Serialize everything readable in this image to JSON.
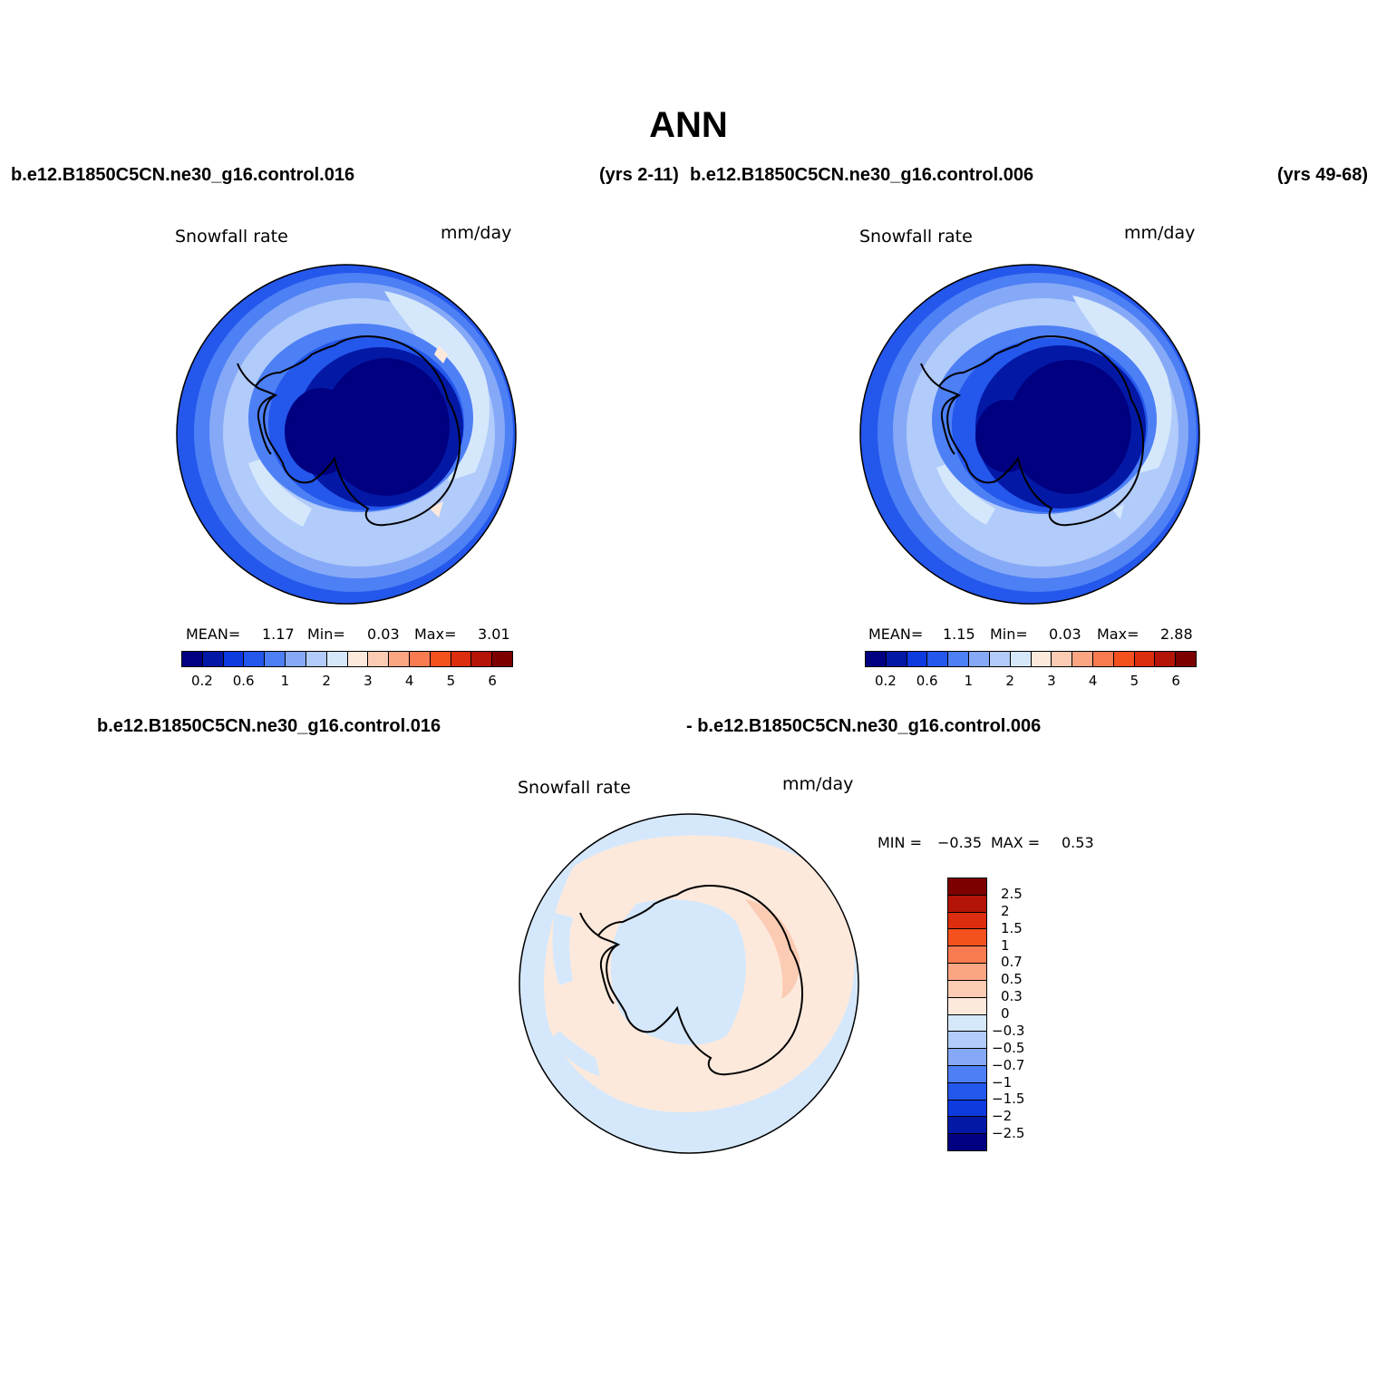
{
  "title": "ANN",
  "top_left": {
    "case": "b.e12.B1850C5CN.ne30_g16.control.016",
    "years": "(yrs 2-11)",
    "variable": "Snowfall rate",
    "units": "mm/day",
    "stats": {
      "mean_label": "MEAN=",
      "mean": "1.17",
      "min_label": "Min=",
      "min": "0.03",
      "max_label": "Max=",
      "max": "3.01"
    }
  },
  "top_right": {
    "case": "b.e12.B1850C5CN.ne30_g16.control.006",
    "years": "(yrs 49-68)",
    "variable": "Snowfall rate",
    "units": "mm/day",
    "stats": {
      "mean_label": "MEAN=",
      "mean": "1.15",
      "min_label": "Min=",
      "min": "0.03",
      "max_label": "Max=",
      "max": "2.88"
    }
  },
  "bottom": {
    "case_a": "b.e12.B1850C5CN.ne30_g16.control.016",
    "case_b": "- b.e12.B1850C5CN.ne30_g16.control.006",
    "variable": "Snowfall rate",
    "units": "mm/day",
    "stats": {
      "min_label": "MIN =",
      "min": "−0.35",
      "max_label": "MAX =",
      "max": "0.53"
    }
  },
  "colorbar_abs": {
    "colors": [
      "#000080",
      "#0319a6",
      "#0d3be0",
      "#2457eb",
      "#4d7ff5",
      "#86a9f7",
      "#b1cbfa",
      "#d5e8fb",
      "#fde9dc",
      "#fbcbb3",
      "#fba582",
      "#f97b52",
      "#f4511e",
      "#dc2e0e",
      "#b31407",
      "#7d0000"
    ],
    "tick_labels": [
      "0.2",
      "0.6",
      "1",
      "2",
      "3",
      "4",
      "5",
      "6"
    ]
  },
  "colorbar_diff": {
    "colors": [
      "#7d0000",
      "#b31407",
      "#dc2e0e",
      "#f4511e",
      "#f97b52",
      "#fba582",
      "#fbcbb3",
      "#fde9dc",
      "#d5e8fb",
      "#b1cbfa",
      "#86a9f7",
      "#4d7ff5",
      "#2457eb",
      "#0d3be0",
      "#0319a6",
      "#000080"
    ],
    "tick_labels": [
      "2.5",
      "2",
      "1.5",
      "1",
      "0.7",
      "0.5",
      "0.3",
      "0",
      "−0.3",
      "−0.5",
      "−0.7",
      "−1",
      "−1.5",
      "−2",
      "−2.5"
    ]
  },
  "map_colors": {
    "outer_ring": "#2457eb",
    "ring2": "#4d7ff5",
    "ring3": "#86a9f7",
    "ocean": "#b1cbfa",
    "ocean_light": "#d5e8fb",
    "coast": "#2457eb",
    "interior": "#0319a6",
    "core": "#000080",
    "diff_pos": "#fde9dc",
    "diff_neg": "#d5e8fb",
    "diff_strong": "#fbcbb3"
  }
}
